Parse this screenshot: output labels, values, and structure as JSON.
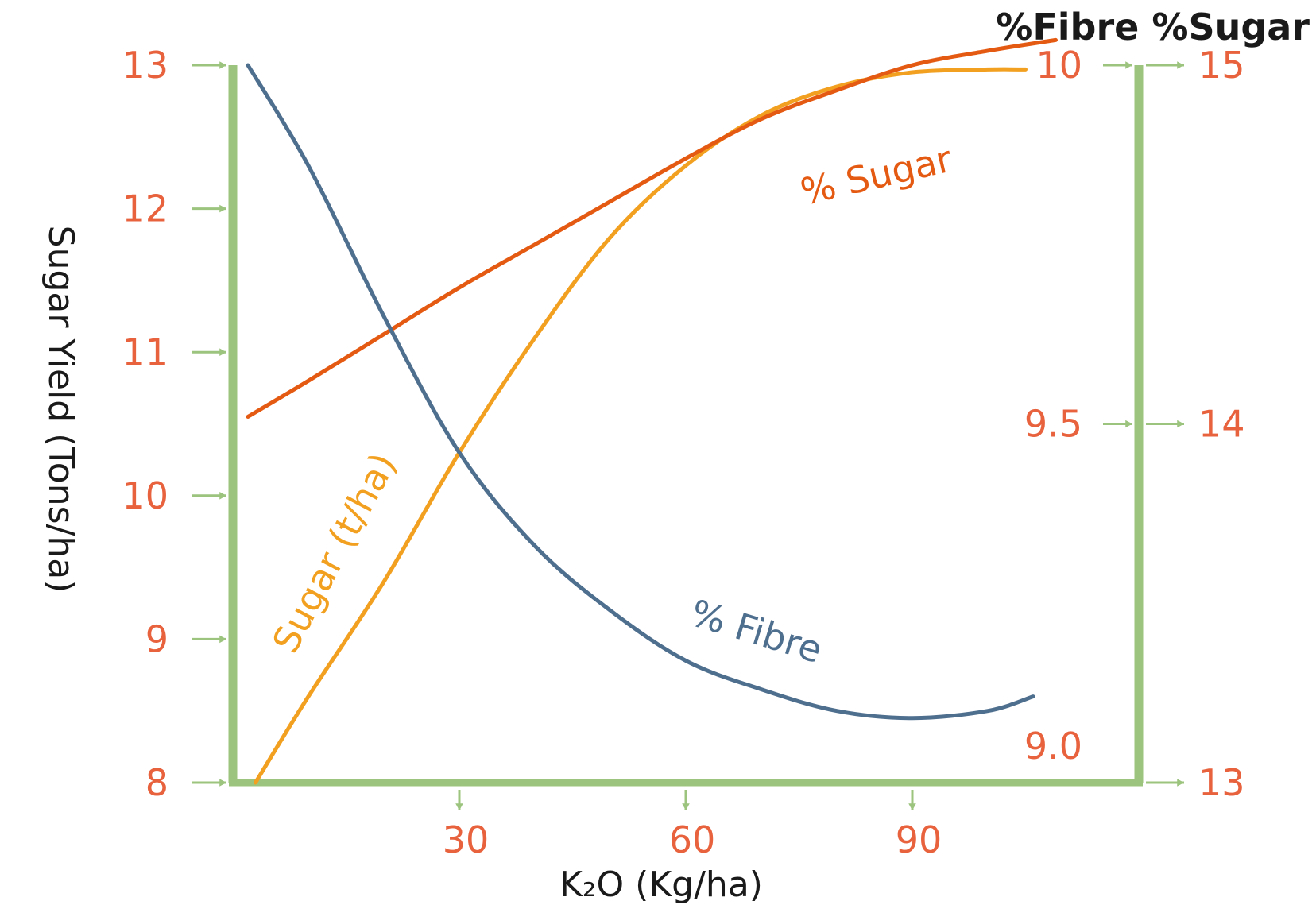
{
  "chart_data": {
    "type": "line",
    "title": "",
    "xlabel": "K₂O (Kg/ha)",
    "ylabel_left": "Sugar Yield (Tons/ha)",
    "right_axes_header": "%Fibre %Sugar",
    "x_ticks": [
      "30",
      "60",
      "90"
    ],
    "x_tick_values": [
      30,
      60,
      90
    ],
    "xlim": [
      0,
      120
    ],
    "y_left_ticks": [
      "13",
      "12",
      "11",
      "10",
      "9",
      "8"
    ],
    "y_left_tick_values": [
      13,
      12,
      11,
      10,
      9,
      8
    ],
    "y_left_lim": [
      8,
      13
    ],
    "y_fibre_ticks": [
      "10",
      "9.5",
      "9.0"
    ],
    "y_fibre_tick_values": [
      10,
      9.5,
      9.0
    ],
    "y_fibre_lim": [
      9.0,
      10.0
    ],
    "y_sugar_pct_ticks": [
      "15",
      "14",
      "13"
    ],
    "y_sugar_pct_tick_values": [
      15,
      14,
      13
    ],
    "y_sugar_pct_lim": [
      13,
      15
    ],
    "grid": false,
    "legend": "none",
    "colors": {
      "axis": "#9cc47e",
      "tick_label": "#e8623e",
      "sugar_yield": "#f2a020",
      "pct_sugar": "#e55a12",
      "pct_fibre": "#4f6f8f"
    },
    "series": [
      {
        "name": "Sugar (t/ha)",
        "axis": "left",
        "color": "#f2a020",
        "x": [
          3,
          10,
          20,
          30,
          40,
          50,
          60,
          70,
          80,
          90,
          100,
          105
        ],
        "y": [
          8.0,
          8.6,
          9.4,
          10.3,
          11.1,
          11.8,
          12.3,
          12.65,
          12.85,
          12.95,
          12.97,
          12.97
        ]
      },
      {
        "name": "% Sugar",
        "axis": "sugar_pct",
        "color": "#e55a12",
        "x": [
          2,
          10,
          20,
          30,
          40,
          50,
          60,
          70,
          80,
          90,
          100,
          109
        ],
        "y": [
          14.02,
          14.12,
          14.25,
          14.38,
          14.5,
          14.62,
          14.74,
          14.85,
          14.93,
          15.0,
          15.04,
          15.07
        ]
      },
      {
        "name": "% Fibre",
        "axis": "fibre",
        "color": "#4f6f8f",
        "x": [
          2,
          10,
          20,
          30,
          40,
          50,
          60,
          70,
          80,
          90,
          100,
          106
        ],
        "y": [
          10.0,
          9.86,
          9.65,
          9.46,
          9.33,
          9.24,
          9.17,
          9.13,
          9.1,
          9.09,
          9.1,
          9.12
        ]
      }
    ]
  }
}
